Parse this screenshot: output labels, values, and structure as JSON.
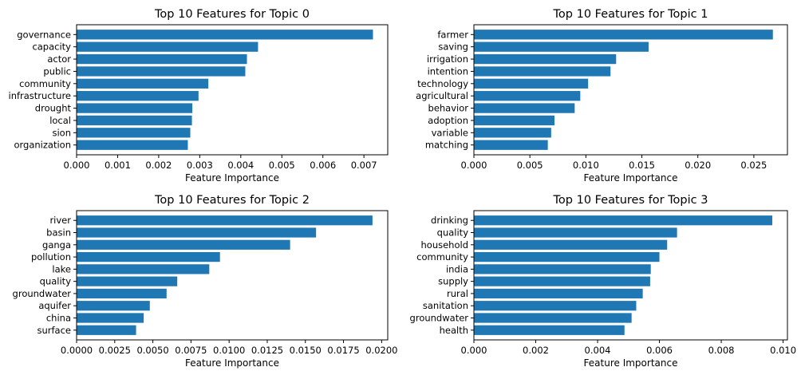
{
  "chart_data": [
    {
      "type": "bar",
      "orientation": "horizontal",
      "title": "Top 10 Features for Topic 0",
      "xlabel": "Feature Importance",
      "ylabel": "",
      "categories": [
        "governance",
        "capacity",
        "actor",
        "public",
        "community",
        "infrastructure",
        "drought",
        "local",
        "sion",
        "organization"
      ],
      "values": [
        0.00722,
        0.00442,
        0.00415,
        0.00411,
        0.00321,
        0.00297,
        0.00282,
        0.00281,
        0.00277,
        0.00271
      ],
      "xlim": [
        0,
        0.00758
      ],
      "xticks": [
        0,
        0.001,
        0.002,
        0.003,
        0.004,
        0.005,
        0.006,
        0.007
      ],
      "xtick_labels": [
        "0.000",
        "0.001",
        "0.002",
        "0.003",
        "0.004",
        "0.005",
        "0.006",
        "0.007"
      ],
      "color": "#1f77b4",
      "grid": false
    },
    {
      "type": "bar",
      "orientation": "horizontal",
      "title": "Top 10 Features for Topic 1",
      "xlabel": "Feature Importance",
      "ylabel": "",
      "categories": [
        "farmer",
        "saving",
        "irrigation",
        "intention",
        "technology",
        "agricultural",
        "behavior",
        "adoption",
        "variable",
        "matching"
      ],
      "values": [
        0.0267,
        0.0156,
        0.0127,
        0.0122,
        0.0102,
        0.0095,
        0.009,
        0.0072,
        0.0069,
        0.0066
      ],
      "xlim": [
        0,
        0.028
      ],
      "xticks": [
        0,
        0.005,
        0.01,
        0.015,
        0.02,
        0.025
      ],
      "xtick_labels": [
        "0.000",
        "0.005",
        "0.010",
        "0.015",
        "0.020",
        "0.025"
      ],
      "color": "#1f77b4",
      "grid": false
    },
    {
      "type": "bar",
      "orientation": "horizontal",
      "title": "Top 10 Features for Topic 2",
      "xlabel": "Feature Importance",
      "ylabel": "",
      "categories": [
        "river",
        "basin",
        "ganga",
        "pollution",
        "lake",
        "quality",
        "groundwater",
        "aquifer",
        "china",
        "surface"
      ],
      "values": [
        0.0194,
        0.0157,
        0.014,
        0.0094,
        0.0087,
        0.0066,
        0.0059,
        0.0048,
        0.0044,
        0.0039
      ],
      "xlim": [
        0,
        0.0204
      ],
      "xticks": [
        0,
        0.0025,
        0.005,
        0.0075,
        0.01,
        0.0125,
        0.015,
        0.0175,
        0.02
      ],
      "xtick_labels": [
        "0.0000",
        "0.0025",
        "0.0050",
        "0.0075",
        "0.0100",
        "0.0125",
        "0.0150",
        "0.0175",
        "0.0200"
      ],
      "color": "#1f77b4",
      "grid": false
    },
    {
      "type": "bar",
      "orientation": "horizontal",
      "title": "Top 10 Features for Topic 3",
      "xlabel": "Feature Importance",
      "ylabel": "",
      "categories": [
        "drinking",
        "quality",
        "household",
        "community",
        "india",
        "supply",
        "rural",
        "sanitation",
        "groundwater",
        "health"
      ],
      "values": [
        0.00965,
        0.00657,
        0.00625,
        0.006,
        0.00572,
        0.0057,
        0.00546,
        0.00525,
        0.0051,
        0.00487
      ],
      "xlim": [
        0,
        0.01014
      ],
      "xticks": [
        0,
        0.002,
        0.004,
        0.006,
        0.008,
        0.01
      ],
      "xtick_labels": [
        "0.000",
        "0.002",
        "0.004",
        "0.006",
        "0.008",
        "0.010"
      ],
      "color": "#1f77b4",
      "grid": false
    }
  ]
}
